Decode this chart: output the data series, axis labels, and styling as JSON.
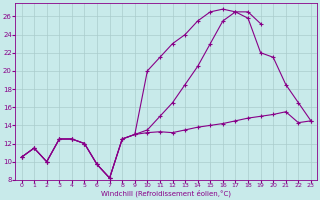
{
  "background_color": "#c8eaea",
  "grid_color": "#aacccc",
  "line_color": "#880088",
  "xlabel": "Windchill (Refroidissement éolien,°C)",
  "xlim": [
    -0.5,
    23.5
  ],
  "ylim": [
    8,
    27.5
  ],
  "xticks": [
    0,
    1,
    2,
    3,
    4,
    5,
    6,
    7,
    8,
    9,
    10,
    11,
    12,
    13,
    14,
    15,
    16,
    17,
    18,
    19,
    20,
    21,
    22,
    23
  ],
  "yticks": [
    8,
    10,
    12,
    14,
    16,
    18,
    20,
    22,
    24,
    26
  ],
  "line1_x": [
    0,
    1,
    2,
    3,
    4,
    5,
    6,
    7,
    8,
    9,
    10,
    11,
    12,
    13,
    14,
    15,
    16,
    17,
    18,
    19,
    20,
    21,
    22,
    23
  ],
  "line1_y": [
    10.5,
    11.5,
    10.0,
    12.5,
    12.5,
    12.0,
    9.7,
    8.2,
    12.5,
    13.0,
    13.2,
    13.3,
    13.2,
    13.5,
    13.8,
    14.0,
    14.2,
    14.5,
    14.8,
    15.0,
    15.2,
    15.5,
    14.3,
    14.5
  ],
  "line2_x": [
    0,
    1,
    2,
    3,
    4,
    5,
    6,
    7,
    8,
    9,
    10,
    11,
    12,
    13,
    14,
    15,
    16,
    17,
    18,
    19,
    20,
    21,
    22,
    23
  ],
  "line2_y": [
    10.5,
    11.5,
    10.0,
    12.5,
    12.5,
    12.0,
    9.7,
    8.2,
    12.5,
    13.0,
    13.5,
    15.0,
    16.5,
    18.5,
    20.5,
    23.0,
    25.5,
    26.5,
    26.5,
    25.2,
    null,
    null,
    null,
    null
  ],
  "line3_x": [
    0,
    1,
    2,
    3,
    4,
    5,
    6,
    7,
    8,
    9,
    10,
    11,
    12,
    13,
    14,
    15,
    16,
    17,
    18,
    19,
    20,
    21,
    22,
    23
  ],
  "line3_y": [
    10.5,
    11.5,
    10.0,
    12.5,
    12.5,
    12.0,
    9.7,
    8.2,
    12.5,
    13.0,
    20.0,
    21.5,
    23.0,
    24.0,
    25.5,
    26.5,
    26.8,
    26.5,
    25.8,
    22.0,
    21.5,
    18.5,
    16.5,
    14.5
  ]
}
